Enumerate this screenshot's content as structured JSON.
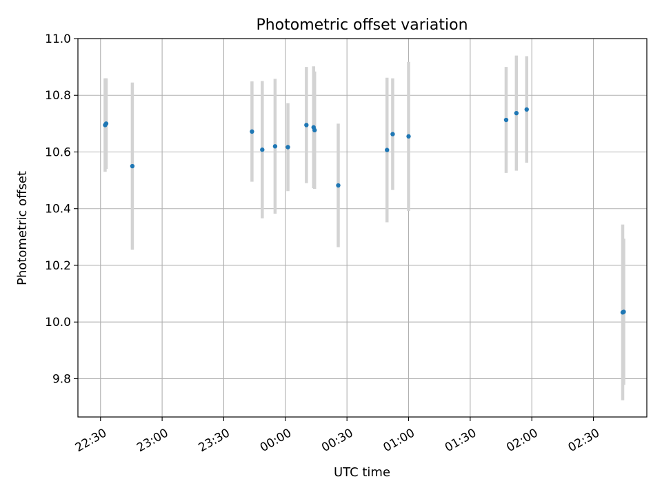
{
  "chart_data": {
    "type": "scatter",
    "title": "Photometric offset variation",
    "xlabel": "UTC time",
    "ylabel": "Photometric offset",
    "xlim": [
      "22:19",
      "02:56"
    ],
    "ylim": [
      9.665,
      11.0
    ],
    "x_ticks": [
      "22:30",
      "23:00",
      "23:30",
      "00:00",
      "00:30",
      "01:00",
      "01:30",
      "02:00",
      "02:30"
    ],
    "y_ticks": [
      "9.8",
      "10.0",
      "10.2",
      "10.4",
      "10.6",
      "10.8",
      "11.0"
    ],
    "grid": true,
    "point_color": "#1f77b4",
    "errorbar_color": "#d3d3d3",
    "points": [
      {
        "t": "22:32:15",
        "y": 10.695,
        "err": 0.165
      },
      {
        "t": "22:32:45",
        "y": 10.7,
        "err": 0.16
      },
      {
        "t": "22:45:30",
        "y": 10.55,
        "err": 0.295
      },
      {
        "t": "23:43:45",
        "y": 10.672,
        "err": 0.177
      },
      {
        "t": "23:48:45",
        "y": 10.608,
        "err": 0.242
      },
      {
        "t": "23:55:00",
        "y": 10.62,
        "err": 0.238
      },
      {
        "t": "00:01:15",
        "y": 10.617,
        "err": 0.155
      },
      {
        "t": "00:10:15",
        "y": 10.695,
        "err": 0.205
      },
      {
        "t": "00:13:45",
        "y": 10.687,
        "err": 0.215
      },
      {
        "t": "00:14:15",
        "y": 10.677,
        "err": 0.207
      },
      {
        "t": "00:25:45",
        "y": 10.482,
        "err": 0.218
      },
      {
        "t": "00:49:30",
        "y": 10.607,
        "err": 0.255
      },
      {
        "t": "00:52:15",
        "y": 10.663,
        "err": 0.197
      },
      {
        "t": "01:00:00",
        "y": 10.655,
        "err": 0.263
      },
      {
        "t": "01:47:30",
        "y": 10.713,
        "err": 0.187
      },
      {
        "t": "01:52:30",
        "y": 10.737,
        "err": 0.203
      },
      {
        "t": "01:57:30",
        "y": 10.75,
        "err": 0.188
      },
      {
        "t": "02:44:15",
        "y": 10.034,
        "err": 0.31
      },
      {
        "t": "02:44:45",
        "y": 10.036,
        "err": 0.258
      }
    ]
  }
}
